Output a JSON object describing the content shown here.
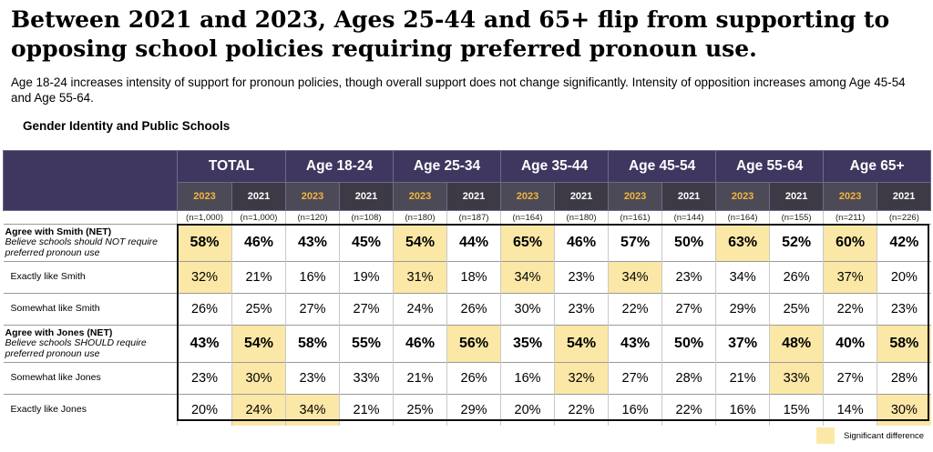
{
  "title": "Between 2021 and 2023, Ages 25-44 and 65+ flip from supporting to opposing school policies requiring preferred pronoun use.",
  "subtitle": "Age 18-24 increases intensity of support for pronoun policies, though overall support does not change significantly. Intensity of opposition increases among Age 45-54 and Age 55-64.",
  "section_title": "Gender Identity and Public Schools",
  "legend_label": "Significant difference",
  "colors": {
    "header_bg": "#3f3760",
    "highlight": "#fbe8a6",
    "year_accent": "#f2b53c"
  },
  "chart_data": {
    "type": "table",
    "groups": [
      {
        "name": "TOTAL",
        "years": [
          "2023",
          "2021"
        ],
        "n": [
          "(n=1,000)",
          "(n=1,000)"
        ]
      },
      {
        "name": "Age 18-24",
        "years": [
          "2023",
          "2021"
        ],
        "n": [
          "(n=120)",
          "(n=108)"
        ]
      },
      {
        "name": "Age 25-34",
        "years": [
          "2023",
          "2021"
        ],
        "n": [
          "(n=180)",
          "(n=187)"
        ]
      },
      {
        "name": "Age 35-44",
        "years": [
          "2023",
          "2021"
        ],
        "n": [
          "(n=164)",
          "(n=180)"
        ]
      },
      {
        "name": "Age 45-54",
        "years": [
          "2023",
          "2021"
        ],
        "n": [
          "(n=161)",
          "(n=144)"
        ]
      },
      {
        "name": "Age 55-64",
        "years": [
          "2023",
          "2021"
        ],
        "n": [
          "(n=164)",
          "(n=155)"
        ]
      },
      {
        "name": "Age 65+",
        "years": [
          "2023",
          "2021"
        ],
        "n": [
          "(n=211)",
          "(n=226)"
        ]
      }
    ],
    "rows": [
      {
        "label": "Agree with Smith (NET)",
        "description": "Believe schools should NOT require preferred pronoun use",
        "net": true,
        "values": [
          "58%",
          "46%",
          "43%",
          "45%",
          "54%",
          "44%",
          "65%",
          "46%",
          "57%",
          "50%",
          "63%",
          "52%",
          "60%",
          "42%"
        ],
        "significant": [
          true,
          false,
          false,
          false,
          true,
          false,
          true,
          false,
          false,
          false,
          true,
          false,
          true,
          false
        ]
      },
      {
        "label": "Exactly like Smith",
        "description": "",
        "net": false,
        "values": [
          "32%",
          "21%",
          "16%",
          "19%",
          "31%",
          "18%",
          "34%",
          "23%",
          "34%",
          "23%",
          "34%",
          "26%",
          "37%",
          "20%"
        ],
        "significant": [
          true,
          false,
          false,
          false,
          true,
          false,
          true,
          false,
          true,
          false,
          false,
          false,
          true,
          false
        ]
      },
      {
        "label": "Somewhat like Smith",
        "description": "",
        "net": false,
        "values": [
          "26%",
          "25%",
          "27%",
          "27%",
          "24%",
          "26%",
          "30%",
          "23%",
          "22%",
          "27%",
          "29%",
          "25%",
          "22%",
          "23%"
        ],
        "significant": [
          false,
          false,
          false,
          false,
          false,
          false,
          false,
          false,
          false,
          false,
          false,
          false,
          false,
          false
        ]
      },
      {
        "label": "Agree with Jones (NET)",
        "description": "Believe schools SHOULD require preferred pronoun use",
        "net": true,
        "values": [
          "43%",
          "54%",
          "58%",
          "55%",
          "46%",
          "56%",
          "35%",
          "54%",
          "43%",
          "50%",
          "37%",
          "48%",
          "40%",
          "58%"
        ],
        "significant": [
          false,
          true,
          false,
          false,
          false,
          true,
          false,
          true,
          false,
          false,
          false,
          true,
          false,
          true
        ]
      },
      {
        "label": "Somewhat like Jones",
        "description": "",
        "net": false,
        "values": [
          "23%",
          "30%",
          "23%",
          "33%",
          "21%",
          "26%",
          "16%",
          "32%",
          "27%",
          "28%",
          "21%",
          "33%",
          "27%",
          "28%"
        ],
        "significant": [
          false,
          true,
          false,
          false,
          false,
          false,
          false,
          true,
          false,
          false,
          false,
          true,
          false,
          false
        ]
      },
      {
        "label": "Exactly like Jones",
        "description": "",
        "net": false,
        "values": [
          "20%",
          "24%",
          "34%",
          "21%",
          "25%",
          "29%",
          "20%",
          "22%",
          "16%",
          "22%",
          "16%",
          "15%",
          "14%",
          "30%"
        ],
        "significant": [
          false,
          true,
          true,
          false,
          false,
          false,
          false,
          false,
          false,
          false,
          false,
          false,
          false,
          true
        ]
      }
    ]
  }
}
